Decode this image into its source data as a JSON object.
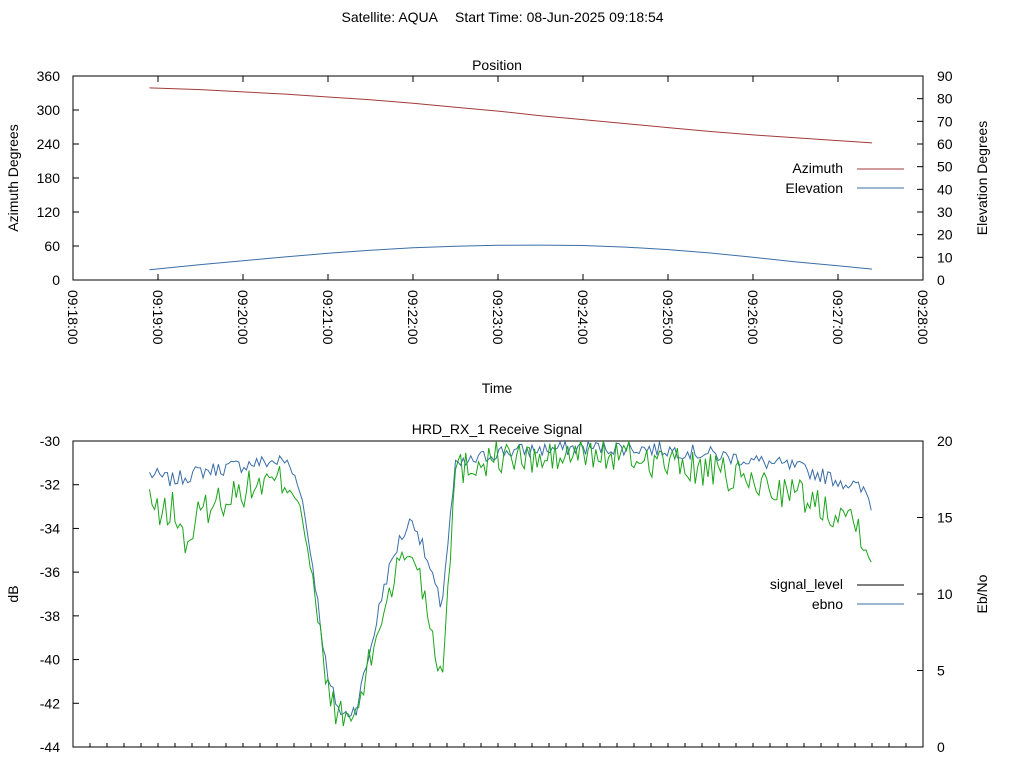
{
  "header": {
    "satellite_label": "Satellite: AQUA",
    "start_time_label": "Start Time: 08-Jun-2025 09:18:54"
  },
  "chart_data": [
    {
      "type": "line",
      "title": "Position",
      "xlabel": "Time",
      "ylabel": "Azimuth Degrees",
      "y2label": "Elevation Degrees",
      "xlim": [
        "09:18:00",
        "09:28:00"
      ],
      "ylim": [
        0,
        360
      ],
      "y2lim": [
        0,
        90
      ],
      "xticks": [
        "09:18:00",
        "09:19:00",
        "09:20:00",
        "09:21:00",
        "09:22:00",
        "09:23:00",
        "09:24:00",
        "09:25:00",
        "09:26:00",
        "09:27:00",
        "09:28:00"
      ],
      "yticks": [
        "0",
        "60",
        "120",
        "180",
        "240",
        "300",
        "360"
      ],
      "y2ticks": [
        "0",
        "10",
        "20",
        "30",
        "40",
        "50",
        "60",
        "70",
        "80",
        "90"
      ],
      "legend_position": "right",
      "colors": {
        "azimuth": "#a33a3a",
        "elevation": "#3a6ea8"
      },
      "series": [
        {
          "name": "Azimuth",
          "axis": "left",
          "x": [
            "09:18:54",
            "09:19:30",
            "09:20:00",
            "09:20:30",
            "09:21:00",
            "09:21:30",
            "09:22:00",
            "09:22:30",
            "09:23:00",
            "09:23:30",
            "09:24:00",
            "09:24:30",
            "09:25:00",
            "09:25:30",
            "09:26:00",
            "09:26:30",
            "09:27:00",
            "09:27:24"
          ],
          "values": [
            339,
            336,
            332,
            328,
            323,
            318,
            312,
            305,
            298,
            290,
            283,
            276,
            269,
            262,
            256,
            251,
            246,
            242
          ]
        },
        {
          "name": "Elevation",
          "axis": "right",
          "x": [
            "09:18:54",
            "09:19:30",
            "09:20:00",
            "09:20:30",
            "09:21:00",
            "09:21:30",
            "09:22:00",
            "09:22:30",
            "09:23:00",
            "09:23:30",
            "09:24:00",
            "09:24:30",
            "09:25:00",
            "09:25:30",
            "09:26:00",
            "09:26:30",
            "09:27:00",
            "09:27:24"
          ],
          "values": [
            4.5,
            6.8,
            8.5,
            10.2,
            11.8,
            13.1,
            14.2,
            14.9,
            15.3,
            15.4,
            15.2,
            14.5,
            13.4,
            11.9,
            10.0,
            8.0,
            6.3,
            4.8
          ]
        }
      ]
    },
    {
      "type": "line",
      "title": "HRD_RX_1 Receive Signal",
      "ylabel": "dB",
      "y2label": "Eb/No",
      "xlim": [
        "09:18:00",
        "09:28:00"
      ],
      "ylim": [
        -44,
        -30
      ],
      "y2lim": [
        0,
        20
      ],
      "yticks": [
        "-30",
        "-32",
        "-34",
        "-36",
        "-38",
        "-40",
        "-42",
        "-44"
      ],
      "y2ticks": [
        "0",
        "5",
        "10",
        "15",
        "20"
      ],
      "legend_position": "right",
      "colors": {
        "signal_level_legend": "#000000",
        "ebno_legend": "#3a6ea8",
        "green_trace": "#1aa51a",
        "blue_trace": "#3a6ea8"
      },
      "legend": [
        "signal_level",
        "ebno"
      ],
      "series": [
        {
          "axis": "left",
          "color_key": "blue_trace",
          "x": [
            "09:18:54",
            "09:19:10",
            "09:19:30",
            "09:19:50",
            "09:20:10",
            "09:20:30",
            "09:20:40",
            "09:20:50",
            "09:21:00",
            "09:21:10",
            "09:21:20",
            "09:21:30",
            "09:21:40",
            "09:21:50",
            "09:22:00",
            "09:22:10",
            "09:22:20",
            "09:22:30",
            "09:23:00",
            "09:23:30",
            "09:24:00",
            "09:24:30",
            "09:25:00",
            "09:25:30",
            "09:26:00",
            "09:26:30",
            "09:26:50",
            "09:27:10",
            "09:27:20",
            "09:27:24"
          ],
          "values": [
            -31.5,
            -31.8,
            -31.4,
            -31.2,
            -31.0,
            -30.9,
            -32.0,
            -36.0,
            -41.0,
            -42.6,
            -42.2,
            -39.5,
            -36.5,
            -34.6,
            -33.5,
            -35.5,
            -37.6,
            -31.2,
            -30.5,
            -30.4,
            -30.3,
            -30.3,
            -30.4,
            -30.6,
            -30.9,
            -31.2,
            -31.6,
            -32.0,
            -32.4,
            -33.0
          ]
        },
        {
          "axis": "left",
          "color_key": "green_trace",
          "x": [
            "09:18:54",
            "09:19:00",
            "09:19:10",
            "09:19:20",
            "09:19:30",
            "09:19:50",
            "09:20:10",
            "09:20:30",
            "09:20:40",
            "09:20:50",
            "09:21:00",
            "09:21:10",
            "09:21:20",
            "09:21:30",
            "09:21:40",
            "09:21:50",
            "09:22:00",
            "09:22:10",
            "09:22:20",
            "09:22:30",
            "09:23:00",
            "09:23:30",
            "09:24:00",
            "09:24:30",
            "09:25:00",
            "09:25:30",
            "09:26:00",
            "09:26:30",
            "09:26:50",
            "09:27:10",
            "09:27:20",
            "09:27:24"
          ],
          "values": [
            -32.5,
            -33.5,
            -33.0,
            -34.8,
            -33.2,
            -32.5,
            -32.0,
            -31.8,
            -32.5,
            -37.0,
            -41.5,
            -42.8,
            -42.5,
            -40.0,
            -37.5,
            -35.6,
            -35.0,
            -37.5,
            -40.9,
            -31.3,
            -30.7,
            -30.9,
            -30.6,
            -30.7,
            -31.0,
            -31.4,
            -31.9,
            -32.4,
            -33.0,
            -33.4,
            -34.5,
            -35.2
          ]
        }
      ]
    }
  ]
}
